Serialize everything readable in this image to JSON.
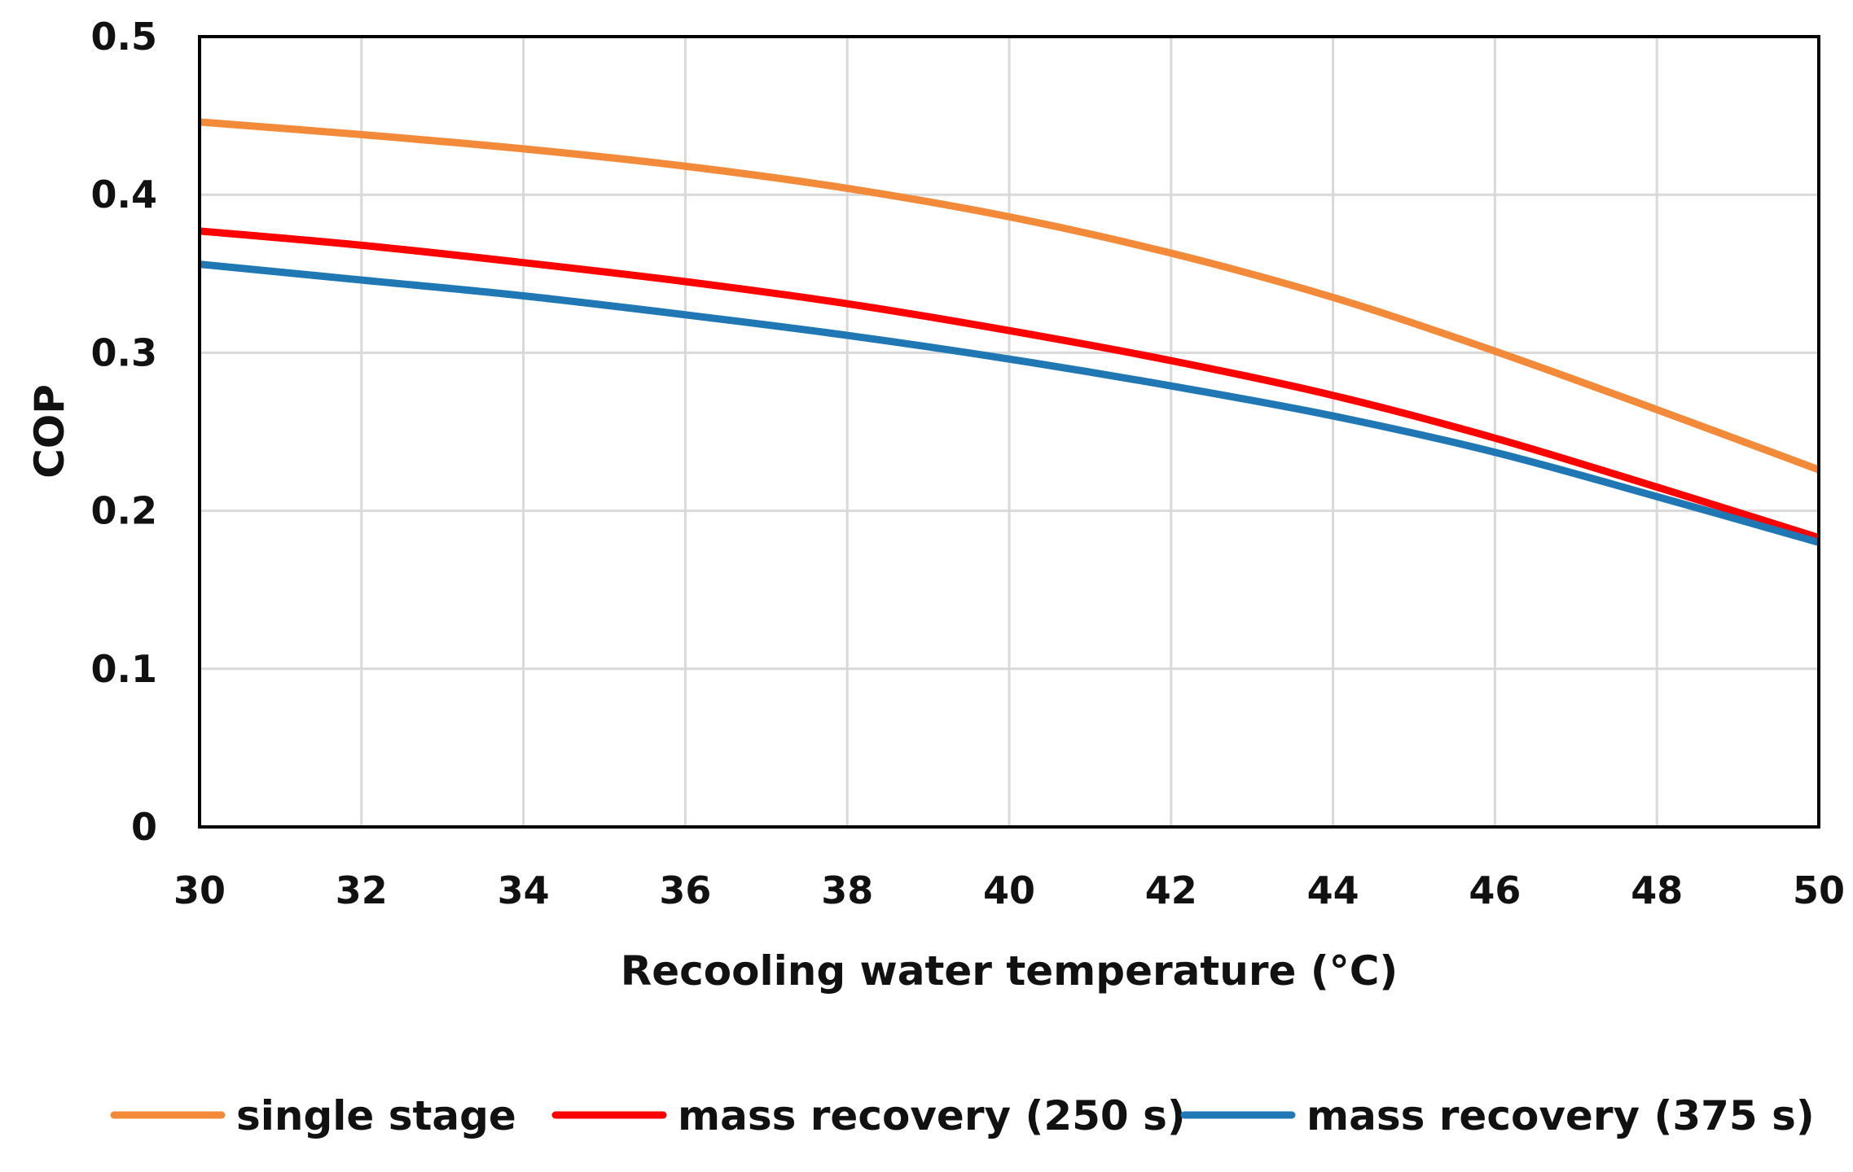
{
  "chart_data": {
    "type": "line",
    "title": "",
    "xlabel": "Recooling water temperature (°C)",
    "ylabel": "COP",
    "xlim": [
      30,
      50
    ],
    "ylim": [
      0,
      0.5
    ],
    "x_ticks": [
      "30",
      "32",
      "34",
      "36",
      "38",
      "40",
      "42",
      "44",
      "46",
      "48",
      "50"
    ],
    "y_ticks": [
      "0",
      "0.1",
      "0.2",
      "0.3",
      "0.4",
      "0.5"
    ],
    "grid": true,
    "legend_position": "bottom",
    "x": [
      30,
      32,
      34,
      36,
      38,
      40,
      42,
      44,
      46,
      48,
      50
    ],
    "series": [
      {
        "name": "single stage",
        "color": "#f28a3a",
        "values": [
          0.446,
          0.438,
          0.429,
          0.418,
          0.404,
          0.386,
          0.363,
          0.335,
          0.301,
          0.264,
          0.226
        ]
      },
      {
        "name": "mass recovery (250 s)",
        "color": "#ff0000",
        "values": [
          0.377,
          0.368,
          0.357,
          0.345,
          0.331,
          0.314,
          0.295,
          0.273,
          0.246,
          0.215,
          0.183
        ]
      },
      {
        "name": "mass recovery (375 s)",
        "color": "#1f77b4",
        "values": [
          0.356,
          0.346,
          0.336,
          0.324,
          0.311,
          0.296,
          0.279,
          0.26,
          0.237,
          0.209,
          0.18
        ]
      }
    ]
  }
}
